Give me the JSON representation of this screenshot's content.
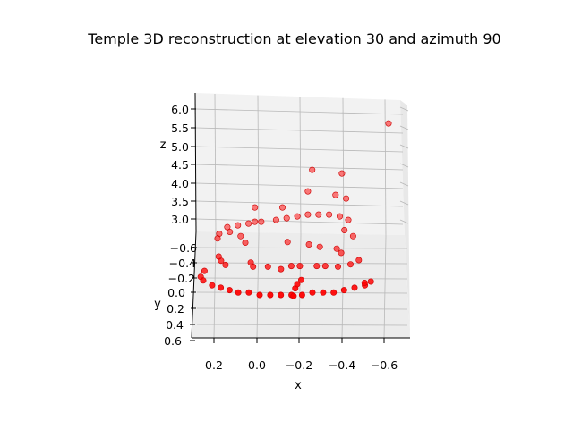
{
  "chart_data": {
    "type": "scatter",
    "projection": "3d",
    "title": "Temple 3D reconstruction at elevation 30 and azimuth 90",
    "xlabel": "x",
    "ylabel": "y",
    "zlabel": "z",
    "view": {
      "elevation": 30,
      "azimuth": 90
    },
    "grid": true,
    "marker_color": "#ff0000",
    "xlim": [
      -0.7,
      0.3
    ],
    "ylim": [
      -0.7,
      0.6
    ],
    "zlim": [
      2.6,
      6.2
    ],
    "xticks": [
      "0.2",
      "0.0",
      "−0.2",
      "−0.4",
      "−0.6"
    ],
    "yticks": [
      "−0.6",
      "−0.4",
      "−0.2",
      "0.0",
      "0.2",
      "0.4",
      "0.6"
    ],
    "zticks": [
      "3.0",
      "3.5",
      "4.0",
      "4.5",
      "5.0",
      "5.5",
      "6.0"
    ],
    "points": [
      {
        "x": -0.63,
        "y": -0.55,
        "z": 5.9
      },
      {
        "x": -0.27,
        "y": -0.55,
        "z": 4.6
      },
      {
        "x": -0.41,
        "y": -0.55,
        "z": 4.5
      },
      {
        "x": -0.25,
        "y": -0.55,
        "z": 4.0
      },
      {
        "x": -0.38,
        "y": -0.55,
        "z": 3.9
      },
      {
        "x": -0.43,
        "y": -0.55,
        "z": 3.8
      },
      {
        "x": 0.0,
        "y": -0.55,
        "z": 3.55
      },
      {
        "x": -0.13,
        "y": -0.55,
        "z": 3.55
      },
      {
        "x": 0.0,
        "y": -0.55,
        "z": 3.15
      },
      {
        "x": 0.03,
        "y": -0.55,
        "z": 3.1
      },
      {
        "x": -0.03,
        "y": -0.55,
        "z": 3.15
      },
      {
        "x": -0.1,
        "y": -0.55,
        "z": 3.2
      },
      {
        "x": -0.15,
        "y": -0.55,
        "z": 3.25
      },
      {
        "x": -0.2,
        "y": -0.55,
        "z": 3.3
      },
      {
        "x": -0.25,
        "y": -0.55,
        "z": 3.35
      },
      {
        "x": -0.3,
        "y": -0.55,
        "z": 3.35
      },
      {
        "x": -0.35,
        "y": -0.55,
        "z": 3.35
      },
      {
        "x": -0.4,
        "y": -0.55,
        "z": 3.3
      },
      {
        "x": -0.44,
        "y": -0.55,
        "z": 3.2
      },
      {
        "x": 0.13,
        "y": -0.55,
        "z": 3.0
      },
      {
        "x": 0.08,
        "y": -0.55,
        "z": 3.05
      },
      {
        "x": 0.12,
        "y": -0.45,
        "z": 3.0
      },
      {
        "x": 0.17,
        "y": -0.45,
        "z": 2.95
      },
      {
        "x": 0.18,
        "y": -0.35,
        "z": 2.95
      },
      {
        "x": -0.42,
        "y": -0.45,
        "z": 3.05
      },
      {
        "x": -0.46,
        "y": -0.4,
        "z": 2.95
      },
      {
        "x": 0.07,
        "y": -0.4,
        "z": 2.95
      },
      {
        "x": 0.05,
        "y": -0.3,
        "z": 2.9
      },
      {
        "x": -0.15,
        "y": -0.35,
        "z": 2.85
      },
      {
        "x": -0.25,
        "y": -0.3,
        "z": 2.85
      },
      {
        "x": -0.3,
        "y": -0.25,
        "z": 2.85
      },
      {
        "x": -0.38,
        "y": -0.25,
        "z": 2.8
      },
      {
        "x": -0.4,
        "y": -0.2,
        "z": 2.75
      },
      {
        "x": 0.17,
        "y": 0.0,
        "z": 2.8
      },
      {
        "x": 0.15,
        "y": 0.05,
        "z": 2.75
      },
      {
        "x": 0.18,
        "y": -0.05,
        "z": 2.85
      },
      {
        "x": 0.03,
        "y": 0.0,
        "z": 2.75
      },
      {
        "x": 0.02,
        "y": 0.05,
        "z": 2.7
      },
      {
        "x": -0.05,
        "y": 0.05,
        "z": 2.7
      },
      {
        "x": -0.11,
        "y": 0.1,
        "z": 2.7
      },
      {
        "x": -0.16,
        "y": 0.05,
        "z": 2.72
      },
      {
        "x": -0.2,
        "y": 0.05,
        "z": 2.72
      },
      {
        "x": -0.28,
        "y": 0.05,
        "z": 2.72
      },
      {
        "x": -0.32,
        "y": 0.05,
        "z": 2.72
      },
      {
        "x": -0.38,
        "y": 0.05,
        "z": 2.7
      },
      {
        "x": -0.44,
        "y": 0.0,
        "z": 2.7
      },
      {
        "x": -0.48,
        "y": -0.05,
        "z": 2.75
      },
      {
        "x": 0.25,
        "y": 0.1,
        "z": 2.65
      },
      {
        "x": 0.27,
        "y": 0.2,
        "z": 2.62
      },
      {
        "x": 0.26,
        "y": 0.3,
        "z": 2.65
      },
      {
        "x": 0.22,
        "y": 0.4,
        "z": 2.65
      },
      {
        "x": 0.18,
        "y": 0.45,
        "z": 2.65
      },
      {
        "x": 0.14,
        "y": 0.5,
        "z": 2.65
      },
      {
        "x": 0.1,
        "y": 0.55,
        "z": 2.65
      },
      {
        "x": 0.05,
        "y": 0.55,
        "z": 2.65
      },
      {
        "x": 0.0,
        "y": 0.6,
        "z": 2.65
      },
      {
        "x": -0.05,
        "y": 0.6,
        "z": 2.65
      },
      {
        "x": -0.1,
        "y": 0.6,
        "z": 2.65
      },
      {
        "x": -0.15,
        "y": 0.6,
        "z": 2.65
      },
      {
        "x": -0.2,
        "y": 0.6,
        "z": 2.65
      },
      {
        "x": -0.25,
        "y": 0.55,
        "z": 2.65
      },
      {
        "x": -0.3,
        "y": 0.55,
        "z": 2.65
      },
      {
        "x": -0.35,
        "y": 0.55,
        "z": 2.65
      },
      {
        "x": -0.4,
        "y": 0.5,
        "z": 2.65
      },
      {
        "x": -0.45,
        "y": 0.45,
        "z": 2.65
      },
      {
        "x": -0.5,
        "y": 0.4,
        "z": 2.65
      },
      {
        "x": -0.53,
        "y": 0.3,
        "z": 2.62
      },
      {
        "x": -0.5,
        "y": 0.35,
        "z": 2.65
      },
      {
        "x": -0.17,
        "y": 0.5,
        "z": 2.7
      },
      {
        "x": -0.18,
        "y": 0.45,
        "z": 2.75
      },
      {
        "x": -0.2,
        "y": 0.4,
        "z": 2.8
      },
      {
        "x": -0.16,
        "y": 0.6,
        "z": 2.62
      }
    ]
  }
}
